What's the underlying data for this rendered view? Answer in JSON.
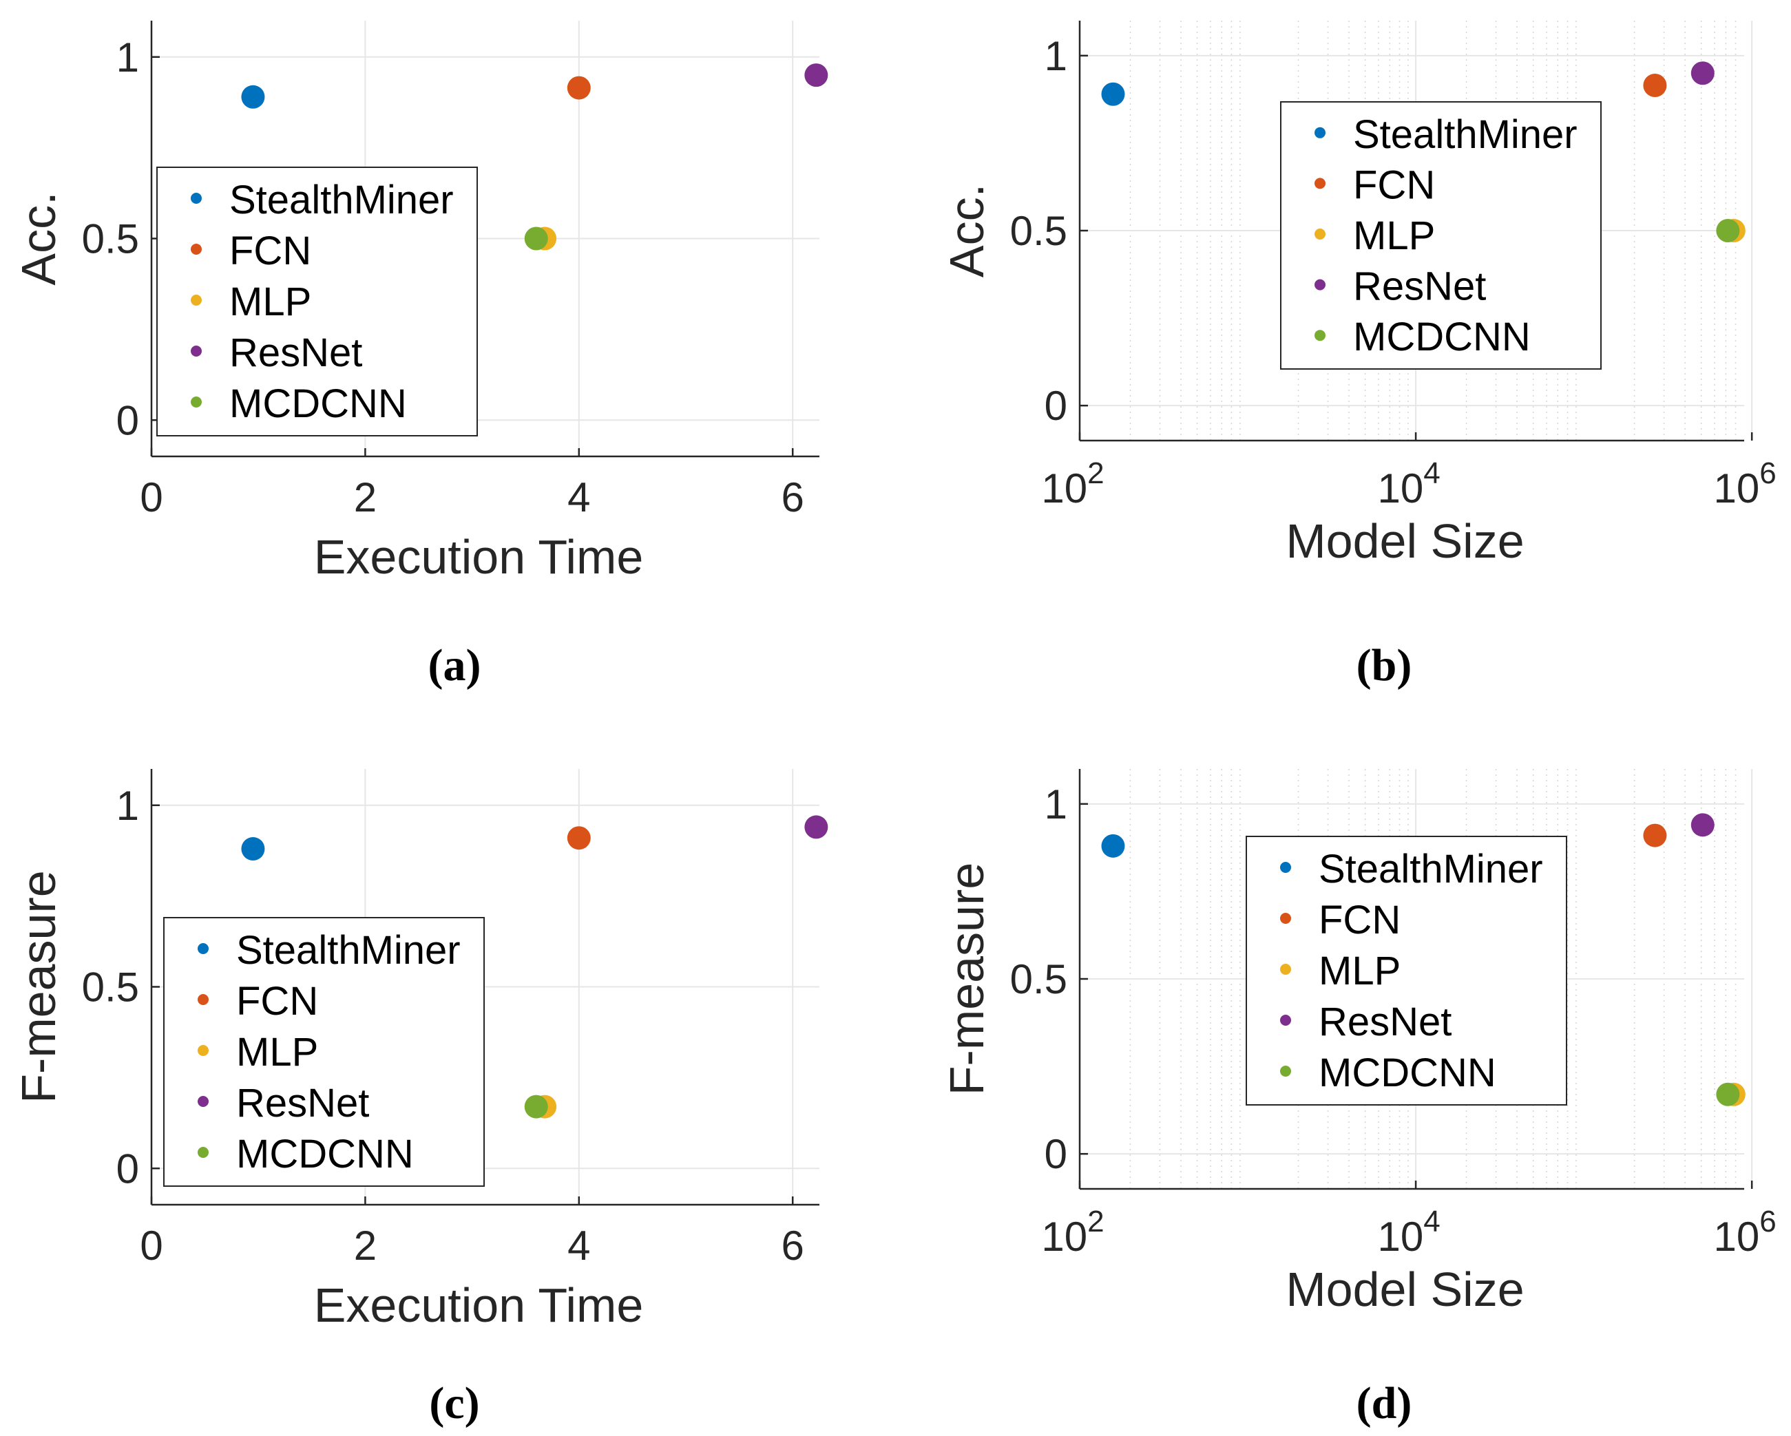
{
  "colors": {
    "StealthMiner": "#0072BD",
    "FCN": "#D95319",
    "MLP": "#EDB120",
    "ResNet": "#7E2F8E",
    "MCDCNN": "#77AC30",
    "axis": "#262626",
    "grid": "#e6e6e6"
  },
  "chart_data": [
    {
      "id": "a",
      "type": "scatter",
      "caption": "(a)",
      "xlabel": "Execution Time",
      "ylabel": "Acc.",
      "xscale": "linear",
      "xlim": [
        0,
        6.25
      ],
      "ylim": [
        -0.1,
        1.1
      ],
      "xticks": [
        0,
        2,
        4,
        6
      ],
      "xtick_labels": [
        "0",
        "2",
        "4",
        "6"
      ],
      "yticks": [
        0,
        0.5,
        1
      ],
      "ytick_labels": [
        "0",
        "0.5",
        "1"
      ],
      "grid": "on",
      "legend_position": "center-left",
      "series": [
        {
          "name": "StealthMiner",
          "x": [
            0.95
          ],
          "y": [
            0.89
          ]
        },
        {
          "name": "FCN",
          "x": [
            4.0
          ],
          "y": [
            0.915
          ]
        },
        {
          "name": "MLP",
          "x": [
            3.68
          ],
          "y": [
            0.5
          ]
        },
        {
          "name": "ResNet",
          "x": [
            6.22
          ],
          "y": [
            0.95
          ]
        },
        {
          "name": "MCDCNN",
          "x": [
            3.6
          ],
          "y": [
            0.5
          ]
        }
      ]
    },
    {
      "id": "b",
      "type": "scatter",
      "caption": "(b)",
      "xlabel": "Model Size",
      "ylabel": "Acc.",
      "xscale": "log",
      "xlim": [
        100,
        900000
      ],
      "ylim": [
        -0.1,
        1.1
      ],
      "xticks": [
        100,
        10000,
        1000000
      ],
      "xtick_labels": [
        [
          "10",
          "2"
        ],
        [
          "10",
          "4"
        ],
        [
          "10",
          "6"
        ]
      ],
      "yticks": [
        0,
        0.5,
        1
      ],
      "ytick_labels": [
        "0",
        "0.5",
        "1"
      ],
      "grid": "on",
      "legend_position": "top-center",
      "series": [
        {
          "name": "StealthMiner",
          "x": [
            158
          ],
          "y": [
            0.89
          ]
        },
        {
          "name": "FCN",
          "x": [
            265000
          ],
          "y": [
            0.915
          ]
        },
        {
          "name": "MLP",
          "x": [
            780000
          ],
          "y": [
            0.5
          ]
        },
        {
          "name": "ResNet",
          "x": [
            510000
          ],
          "y": [
            0.95
          ]
        },
        {
          "name": "MCDCNN",
          "x": [
            720000
          ],
          "y": [
            0.5
          ]
        }
      ]
    },
    {
      "id": "c",
      "type": "scatter",
      "caption": "(c)",
      "xlabel": "Execution Time",
      "ylabel": "F-measure",
      "xscale": "linear",
      "xlim": [
        0,
        6.25
      ],
      "ylim": [
        -0.1,
        1.1
      ],
      "xticks": [
        0,
        2,
        4,
        6
      ],
      "xtick_labels": [
        "0",
        "2",
        "4",
        "6"
      ],
      "yticks": [
        0,
        0.5,
        1
      ],
      "ytick_labels": [
        "0",
        "0.5",
        "1"
      ],
      "grid": "on",
      "legend_position": "center-left",
      "series": [
        {
          "name": "StealthMiner",
          "x": [
            0.95
          ],
          "y": [
            0.88
          ]
        },
        {
          "name": "FCN",
          "x": [
            4.0
          ],
          "y": [
            0.91
          ]
        },
        {
          "name": "MLP",
          "x": [
            3.68
          ],
          "y": [
            0.17
          ]
        },
        {
          "name": "ResNet",
          "x": [
            6.22
          ],
          "y": [
            0.94
          ]
        },
        {
          "name": "MCDCNN",
          "x": [
            3.6
          ],
          "y": [
            0.17
          ]
        }
      ]
    },
    {
      "id": "d",
      "type": "scatter",
      "caption": "(d)",
      "xlabel": "Model Size",
      "ylabel": "F-measure",
      "xscale": "log",
      "xlim": [
        100,
        900000
      ],
      "ylim": [
        -0.1,
        1.1
      ],
      "xticks": [
        100,
        10000,
        1000000
      ],
      "xtick_labels": [
        [
          "10",
          "2"
        ],
        [
          "10",
          "4"
        ],
        [
          "10",
          "6"
        ]
      ],
      "yticks": [
        0,
        0.5,
        1
      ],
      "ytick_labels": [
        "0",
        "0.5",
        "1"
      ],
      "grid": "on",
      "legend_position": "top-center",
      "series": [
        {
          "name": "StealthMiner",
          "x": [
            158
          ],
          "y": [
            0.88
          ]
        },
        {
          "name": "FCN",
          "x": [
            265000
          ],
          "y": [
            0.91
          ]
        },
        {
          "name": "MLP",
          "x": [
            780000
          ],
          "y": [
            0.17
          ]
        },
        {
          "name": "ResNet",
          "x": [
            510000
          ],
          "y": [
            0.94
          ]
        },
        {
          "name": "MCDCNN",
          "x": [
            720000
          ],
          "y": [
            0.17
          ]
        }
      ]
    }
  ]
}
